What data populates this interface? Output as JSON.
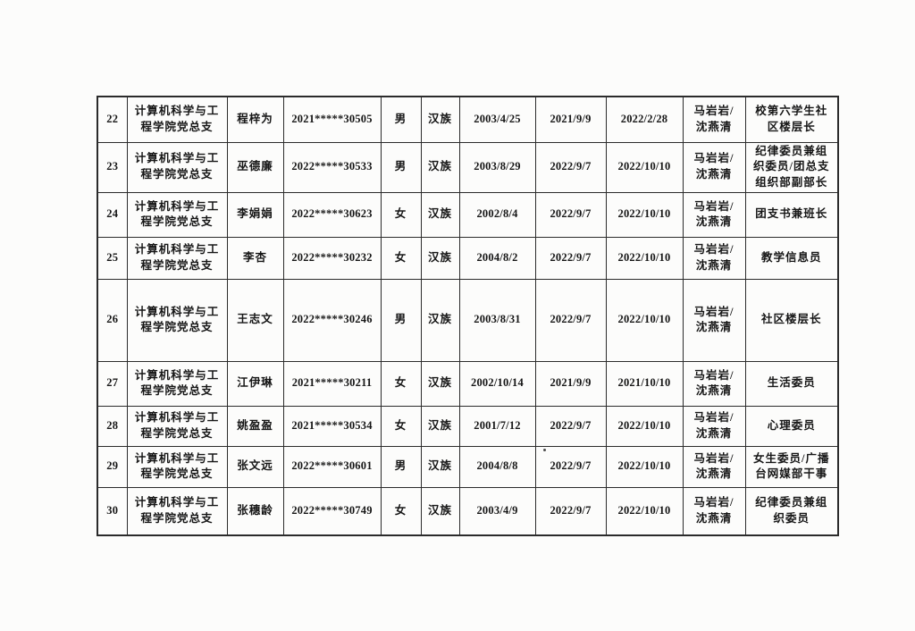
{
  "page": {
    "background_color": "#fcfcfb",
    "text_color": "#161616",
    "line_color": "#2b2b2b"
  },
  "table": {
    "columns": [
      {
        "key": "no",
        "name": "serial-number",
        "type": "num"
      },
      {
        "key": "branch",
        "name": "party-branch",
        "type": "text"
      },
      {
        "key": "name",
        "name": "member-name",
        "type": "text"
      },
      {
        "key": "id",
        "name": "student-id",
        "type": "num"
      },
      {
        "key": "gender",
        "name": "gender",
        "type": "text"
      },
      {
        "key": "ethnic",
        "name": "ethnicity",
        "type": "text"
      },
      {
        "key": "birth",
        "name": "birth-date",
        "type": "num"
      },
      {
        "key": "apply",
        "name": "application-date",
        "type": "num"
      },
      {
        "key": "activist",
        "name": "activist-date",
        "type": "num"
      },
      {
        "key": "contacts",
        "name": "contact-persons",
        "type": "text"
      },
      {
        "key": "role",
        "name": "position",
        "type": "text"
      }
    ],
    "rows": [
      {
        "no": "22",
        "branch": "计算机科学与工\n程学院党总支",
        "name": "程梓为",
        "id": "2021*****30505",
        "gender": "男",
        "ethnic": "汉族",
        "birth": "2003/4/25",
        "apply": "2021/9/9",
        "activist": "2022/2/28",
        "contacts": "马岩岩/\n沈燕清",
        "role": "校第六学生社\n区楼层长"
      },
      {
        "no": "23",
        "branch": "计算机科学与工\n程学院党总支",
        "name": "巫德廉",
        "id": "2022*****30533",
        "gender": "男",
        "ethnic": "汉族",
        "birth": "2003/8/29",
        "apply": "2022/9/7",
        "activist": "2022/10/10",
        "contacts": "马岩岩/\n沈燕清",
        "role": "纪律委员兼组\n织委员/团总支\n组织部副部长"
      },
      {
        "no": "24",
        "branch": "计算机科学与工\n程学院党总支",
        "name": "李娟娟",
        "id": "2022*****30623",
        "gender": "女",
        "ethnic": "汉族",
        "birth": "2002/8/4",
        "apply": "2022/9/7",
        "activist": "2022/10/10",
        "contacts": "马岩岩/\n沈燕清",
        "role": "团支书兼班长"
      },
      {
        "no": "25",
        "branch": "计算机科学与工\n程学院党总支",
        "name": "李杏",
        "id": "2022*****30232",
        "gender": "女",
        "ethnic": "汉族",
        "birth": "2004/8/2",
        "apply": "2022/9/7",
        "activist": "2022/10/10",
        "contacts": "马岩岩/\n沈燕清",
        "role": "教学信息员"
      },
      {
        "no": "26",
        "branch": "计算机科学与工\n程学院党总支",
        "name": "王志文",
        "id": "2022*****30246",
        "gender": "男",
        "ethnic": "汉族",
        "birth": "2003/8/31",
        "apply": "2022/9/7",
        "activist": "2022/10/10",
        "contacts": "马岩岩/\n沈燕清",
        "role": "社区楼层长"
      },
      {
        "no": "27",
        "branch": "计算机科学与工\n程学院党总支",
        "name": "江伊琳",
        "id": "2021*****30211",
        "gender": "女",
        "ethnic": "汉族",
        "birth": "2002/10/14",
        "apply": "2021/9/9",
        "activist": "2021/10/10",
        "contacts": "马岩岩/\n沈燕清",
        "role": "生活委员"
      },
      {
        "no": "28",
        "branch": "计算机科学与工\n程学院党总支",
        "name": "姚盈盈",
        "id": "2021*****30534",
        "gender": "女",
        "ethnic": "汉族",
        "birth": "2001/7/12",
        "apply": "2022/9/7",
        "activist": "2022/10/10",
        "contacts": "马岩岩/\n沈燕清",
        "role": "心理委员"
      },
      {
        "no": "29",
        "branch": "计算机科学与工\n程学院党总支",
        "name": "张文远",
        "id": "2022*****30601",
        "gender": "男",
        "ethnic": "汉族",
        "birth": "2004/8/8",
        "apply": "2022/9/7",
        "activist": "2022/10/10",
        "contacts": "马岩岩/\n沈燕清",
        "role": "女生委员/广播\n台网媒部干事"
      },
      {
        "no": "30",
        "branch": "计算机科学与工\n程学院党总支",
        "name": "张穗龄",
        "id": "2022*****30749",
        "gender": "女",
        "ethnic": "汉族",
        "birth": "2003/4/9",
        "apply": "2022/9/7",
        "activist": "2022/10/10",
        "contacts": "马岩岩/\n沈燕清",
        "role": "纪律委员兼组\n织委员"
      }
    ]
  }
}
